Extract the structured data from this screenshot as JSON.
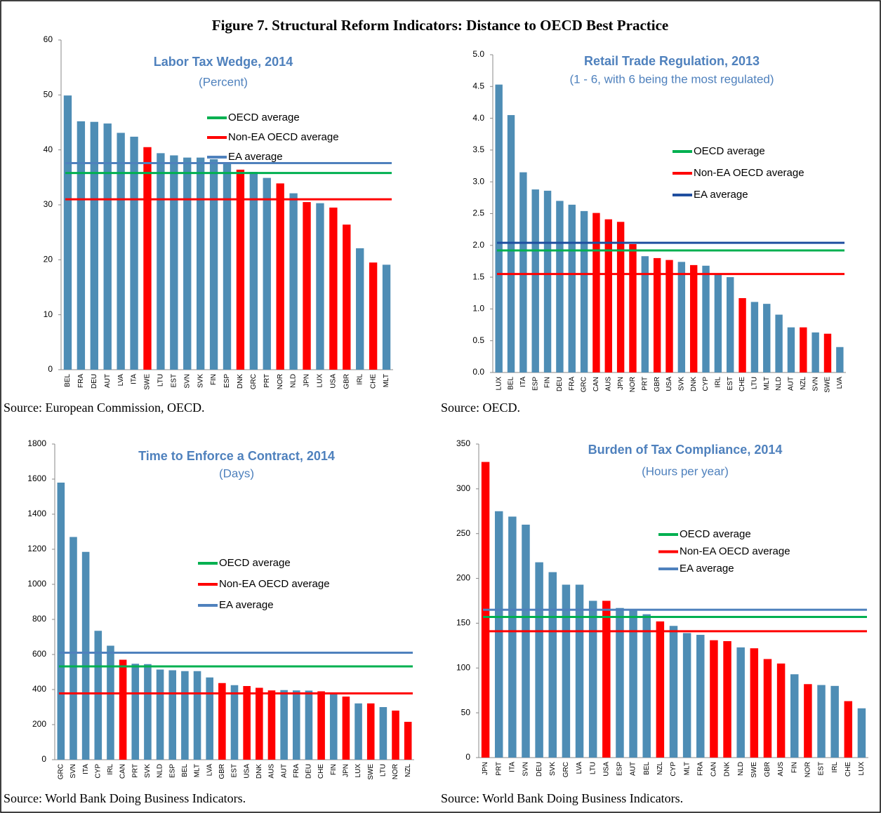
{
  "title": "Figure 7. Structural Reform Indicators: Distance to OECD Best Practice",
  "chart_data": [
    {
      "type": "bar",
      "title": "Labor Tax Wedge, 2014",
      "subtitle": "(Percent)",
      "source": "Source: European Commission, OECD.",
      "categories": [
        "BEL",
        "FRA",
        "DEU",
        "AUT",
        "LVA",
        "ITA",
        "SWE",
        "LTU",
        "EST",
        "SVN",
        "SVK",
        "FIN",
        "ESP",
        "DNK",
        "GRC",
        "PRT",
        "NOR",
        "NLD",
        "JPN",
        "LUX",
        "USA",
        "GBR",
        "IRL",
        "CHE",
        "MLT"
      ],
      "values": [
        49.9,
        45.2,
        45.1,
        44.8,
        43.1,
        42.4,
        40.5,
        39.4,
        39.0,
        38.6,
        38.6,
        38.3,
        37.5,
        36.4,
        36.0,
        34.9,
        33.9,
        32.1,
        30.5,
        30.3,
        29.5,
        26.4,
        22.1,
        19.5,
        19.1
      ],
      "colors": [
        "#4e8db5",
        "#4e8db5",
        "#4e8db5",
        "#4e8db5",
        "#4e8db5",
        "#4e8db5",
        "#ff0000",
        "#4e8db5",
        "#4e8db5",
        "#4e8db5",
        "#4e8db5",
        "#4e8db5",
        "#4e8db5",
        "#ff0000",
        "#4e8db5",
        "#4e8db5",
        "#ff0000",
        "#4e8db5",
        "#ff0000",
        "#4e8db5",
        "#ff0000",
        "#ff0000",
        "#4e8db5",
        "#ff0000",
        "#4e8db5"
      ],
      "reference_lines": [
        {
          "name": "OECD average",
          "color": "#00b050",
          "value": 35.8
        },
        {
          "name": "Non-EA OECD average",
          "color": "#ff0000",
          "value": 31.0
        },
        {
          "name": "EA average",
          "color": "#4f81bd",
          "value": 37.6
        }
      ],
      "ylim": [
        0,
        60
      ],
      "yticks": [
        0,
        10,
        20,
        30,
        40,
        50,
        60
      ]
    },
    {
      "type": "bar",
      "title": "Retail Trade Regulation, 2013",
      "subtitle": "(1 - 6, with 6 being the most regulated)",
      "source": "Source: OECD.",
      "categories": [
        "LUX",
        "BEL",
        "ITA",
        "ESP",
        "FIN",
        "DEU",
        "FRA",
        "GRC",
        "CAN",
        "AUS",
        "JPN",
        "NOR",
        "PRT",
        "GBR",
        "USA",
        "SVK",
        "DNK",
        "CYP",
        "IRL",
        "EST",
        "CHE",
        "LTU",
        "MLT",
        "NLD",
        "AUT",
        "NZL",
        "SVN",
        "SWE",
        "LVA"
      ],
      "values": [
        4.53,
        4.05,
        3.15,
        2.88,
        2.86,
        2.7,
        2.64,
        2.54,
        2.51,
        2.41,
        2.37,
        2.02,
        1.83,
        1.8,
        1.77,
        1.74,
        1.69,
        1.68,
        1.55,
        1.5,
        1.17,
        1.11,
        1.08,
        0.91,
        0.71,
        0.71,
        0.63,
        0.61,
        0.4
      ],
      "colors": [
        "#4e8db5",
        "#4e8db5",
        "#4e8db5",
        "#4e8db5",
        "#4e8db5",
        "#4e8db5",
        "#4e8db5",
        "#4e8db5",
        "#ff0000",
        "#ff0000",
        "#ff0000",
        "#ff0000",
        "#4e8db5",
        "#ff0000",
        "#ff0000",
        "#4e8db5",
        "#ff0000",
        "#4e8db5",
        "#4e8db5",
        "#4e8db5",
        "#ff0000",
        "#4e8db5",
        "#4e8db5",
        "#4e8db5",
        "#4e8db5",
        "#ff0000",
        "#4e8db5",
        "#ff0000",
        "#4e8db5"
      ],
      "reference_lines": [
        {
          "name": "OECD average",
          "color": "#00b050",
          "value": 1.92
        },
        {
          "name": "Non-EA OECD average",
          "color": "#ff0000",
          "value": 1.55
        },
        {
          "name": "EA average",
          "color": "#1f4fa0",
          "value": 2.04
        }
      ],
      "ylim": [
        0,
        5
      ],
      "yticks": [
        {
          "value": 0,
          "label": "0.0"
        },
        0.5,
        {
          "value": 1,
          "label": "1.0"
        },
        1.5,
        {
          "value": 2,
          "label": "2.0"
        },
        2.5,
        {
          "value": 3,
          "label": "3.0"
        },
        3.5,
        {
          "value": 4,
          "label": "4.0"
        },
        4.5,
        {
          "value": 5,
          "label": "5.0"
        }
      ]
    },
    {
      "type": "bar",
      "title": "Time to Enforce a Contract, 2014",
      "subtitle": "(Days)",
      "source": "Source: World Bank Doing Business Indicators.",
      "categories": [
        "GRC",
        "SVN",
        "ITA",
        "CYP",
        "IRL",
        "CAN",
        "PRT",
        "SVK",
        "NLD",
        "ESP",
        "BEL",
        "MLT",
        "LVA",
        "GBR",
        "EST",
        "USA",
        "DNK",
        "AUS",
        "AUT",
        "FRA",
        "DEU",
        "CHE",
        "FIN",
        "JPN",
        "LUX",
        "SWE",
        "LTU",
        "NOR",
        "NZL"
      ],
      "values": [
        1580,
        1270,
        1185,
        735,
        650,
        570,
        547,
        545,
        514,
        510,
        505,
        505,
        469,
        437,
        425,
        420,
        410,
        395,
        397,
        395,
        394,
        390,
        375,
        360,
        321,
        321,
        300,
        280,
        216
      ],
      "colors": [
        "#4e8db5",
        "#4e8db5",
        "#4e8db5",
        "#4e8db5",
        "#4e8db5",
        "#ff0000",
        "#4e8db5",
        "#4e8db5",
        "#4e8db5",
        "#4e8db5",
        "#4e8db5",
        "#4e8db5",
        "#4e8db5",
        "#ff0000",
        "#4e8db5",
        "#ff0000",
        "#ff0000",
        "#ff0000",
        "#4e8db5",
        "#4e8db5",
        "#4e8db5",
        "#ff0000",
        "#4e8db5",
        "#ff0000",
        "#4e8db5",
        "#ff0000",
        "#4e8db5",
        "#ff0000",
        "#ff0000"
      ],
      "reference_lines": [
        {
          "name": "OECD average",
          "color": "#00b050",
          "value": 532
        },
        {
          "name": "Non-EA OECD average",
          "color": "#ff0000",
          "value": 378
        },
        {
          "name": "EA average",
          "color": "#4f81bd",
          "value": 610
        }
      ],
      "ylim": [
        0,
        1800
      ],
      "yticks": [
        0,
        200,
        400,
        600,
        800,
        1000,
        1200,
        1400,
        1600,
        1800
      ]
    },
    {
      "type": "bar",
      "title": "Burden of Tax Compliance, 2014",
      "subtitle": "(Hours per year)",
      "source": "Source: World Bank Doing Business Indicators.",
      "categories": [
        "JPN",
        "PRT",
        "ITA",
        "SVN",
        "DEU",
        "SVK",
        "GRC",
        "LVA",
        "LTU",
        "USA",
        "ESP",
        "AUT",
        "BEL",
        "NZL",
        "CYP",
        "MLT",
        "FRA",
        "CAN",
        "DNK",
        "NLD",
        "SWE",
        "GBR",
        "AUS",
        "FIN",
        "NOR",
        "EST",
        "IRL",
        "CHE",
        "LUX"
      ],
      "values": [
        330,
        275,
        269,
        260,
        218,
        207,
        193,
        193,
        175,
        175,
        167,
        166,
        160,
        152,
        147,
        139,
        137,
        131,
        130,
        123,
        122,
        110,
        105,
        93,
        82,
        81,
        80,
        63,
        55
      ],
      "colors": [
        "#ff0000",
        "#4e8db5",
        "#4e8db5",
        "#4e8db5",
        "#4e8db5",
        "#4e8db5",
        "#4e8db5",
        "#4e8db5",
        "#4e8db5",
        "#ff0000",
        "#4e8db5",
        "#4e8db5",
        "#4e8db5",
        "#ff0000",
        "#4e8db5",
        "#4e8db5",
        "#4e8db5",
        "#ff0000",
        "#ff0000",
        "#4e8db5",
        "#ff0000",
        "#ff0000",
        "#ff0000",
        "#4e8db5",
        "#ff0000",
        "#4e8db5",
        "#4e8db5",
        "#ff0000",
        "#4e8db5"
      ],
      "reference_lines": [
        {
          "name": "OECD average",
          "color": "#00b050",
          "value": 157
        },
        {
          "name": "Non-EA OECD average",
          "color": "#ff0000",
          "value": 141
        },
        {
          "name": "EA average",
          "color": "#4f81bd",
          "value": 165
        }
      ],
      "ylim": [
        0,
        350
      ],
      "yticks": [
        0,
        50,
        100,
        150,
        200,
        250,
        300,
        350
      ]
    }
  ]
}
